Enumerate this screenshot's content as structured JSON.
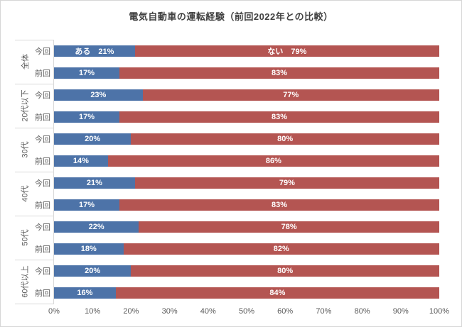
{
  "title": "電気自動車の運転経験（前回2022年との比較）",
  "colors": {
    "series_aru": "#4d73a8",
    "series_nai": "#b45552",
    "grid_line": "#d9d9d9",
    "axis_text": "#595959",
    "title_text": "#404040",
    "bar_label_text": "#ffffff"
  },
  "chart_data": {
    "type": "bar",
    "stacked": true,
    "orientation": "horizontal",
    "title": "電気自動車の運転経験（前回2022年との比較）",
    "series": [
      {
        "name": "ある",
        "color": "#4d73a8"
      },
      {
        "name": "ない",
        "color": "#b45552"
      }
    ],
    "categories": [
      "全体",
      "20代以下",
      "30代",
      "40代",
      "50代",
      "60代以上"
    ],
    "groups": [
      {
        "label": "全体",
        "rows": [
          {
            "label": "今回",
            "values": [
              21,
              79
            ],
            "segment_labels": [
              "ある　21%",
              "ない　79%"
            ]
          },
          {
            "label": "前回",
            "values": [
              17,
              83
            ],
            "segment_labels": [
              "17%",
              "83%"
            ]
          }
        ]
      },
      {
        "label": "20代以下",
        "rows": [
          {
            "label": "今回",
            "values": [
              23,
              77
            ],
            "segment_labels": [
              "23%",
              "77%"
            ]
          },
          {
            "label": "前回",
            "values": [
              17,
              83
            ],
            "segment_labels": [
              "17%",
              "83%"
            ]
          }
        ]
      },
      {
        "label": "30代",
        "rows": [
          {
            "label": "今回",
            "values": [
              20,
              80
            ],
            "segment_labels": [
              "20%",
              "80%"
            ]
          },
          {
            "label": "前回",
            "values": [
              14,
              86
            ],
            "segment_labels": [
              "14%",
              "86%"
            ]
          }
        ]
      },
      {
        "label": "40代",
        "rows": [
          {
            "label": "今回",
            "values": [
              21,
              79
            ],
            "segment_labels": [
              "21%",
              "79%"
            ]
          },
          {
            "label": "前回",
            "values": [
              17,
              83
            ],
            "segment_labels": [
              "17%",
              "83%"
            ]
          }
        ]
      },
      {
        "label": "50代",
        "rows": [
          {
            "label": "今回",
            "values": [
              22,
              78
            ],
            "segment_labels": [
              "22%",
              "78%"
            ]
          },
          {
            "label": "前回",
            "values": [
              18,
              82
            ],
            "segment_labels": [
              "18%",
              "82%"
            ]
          }
        ]
      },
      {
        "label": "60代以上",
        "rows": [
          {
            "label": "今回",
            "values": [
              20,
              80
            ],
            "segment_labels": [
              "20%",
              "80%"
            ]
          },
          {
            "label": "前回",
            "values": [
              16,
              84
            ],
            "segment_labels": [
              "16%",
              "84%"
            ]
          }
        ]
      }
    ],
    "x_ticks": [
      "0%",
      "10%",
      "20%",
      "30%",
      "40%",
      "50%",
      "60%",
      "70%",
      "80%",
      "90%",
      "100%"
    ],
    "xlim": [
      0,
      100
    ],
    "grid": false,
    "legend": "none"
  }
}
